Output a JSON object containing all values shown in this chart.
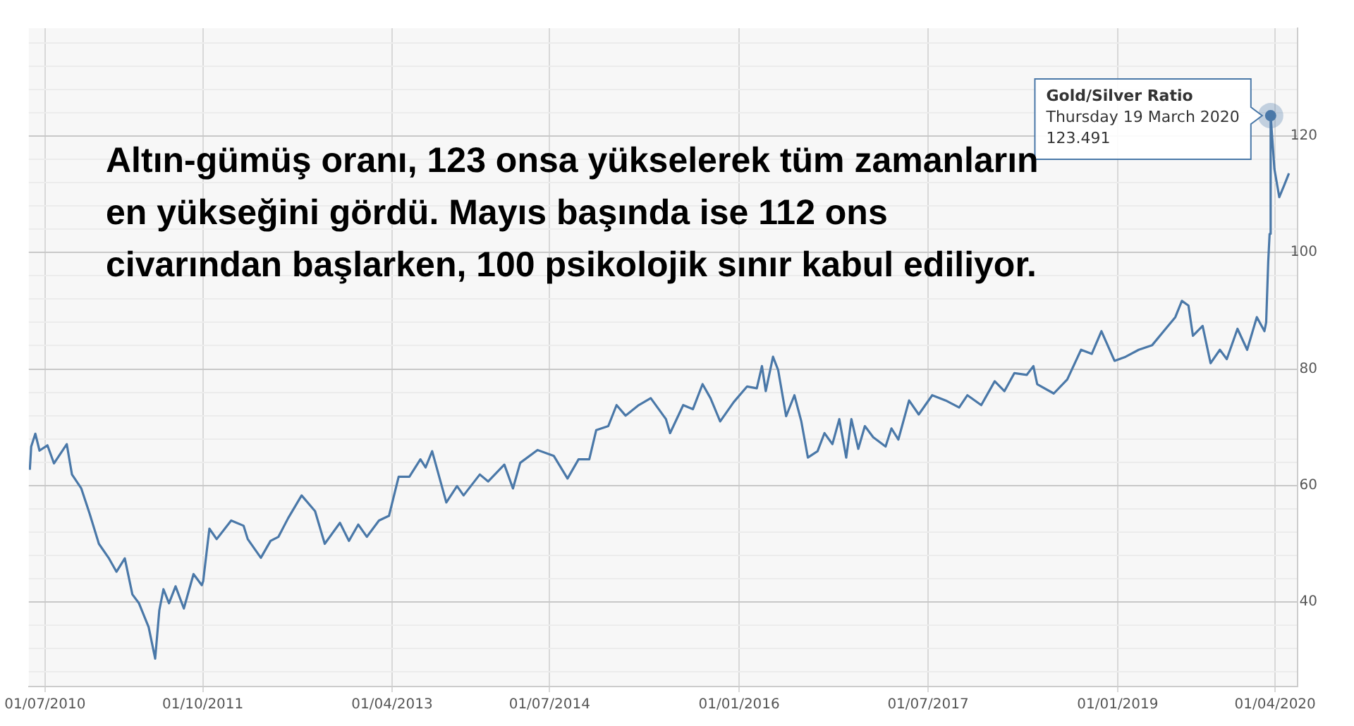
{
  "chart_data": {
    "type": "line",
    "title": "Altın-gümüş oranı, 123 onsa yükselerek tüm zamanların en yükseğini gördü. Mayıs başında ise 112 ons civarından başlarken, 100 psikolojik sınır kabul ediliyor.",
    "series": [
      {
        "color": "#4a78a8",
        "x": [
          "2010-05-18",
          "2010-05-22",
          "2010-06-03",
          "2010-06-15",
          "2010-07-08",
          "2010-07-27",
          "2010-09-02",
          "2010-09-17",
          "2010-10-14",
          "2010-11-07",
          "2010-12-04",
          "2011-01-01",
          "2011-01-24",
          "2011-02-17",
          "2011-03-11",
          "2011-03-30",
          "2011-04-27",
          "2011-05-16",
          "2011-05-28",
          "2011-06-09",
          "2011-06-25",
          "2011-07-14",
          "2011-08-07",
          "2011-09-04",
          "2011-09-28",
          "2011-10-02",
          "2011-10-20",
          "2011-11-10",
          "2011-12-22",
          "2012-01-27",
          "2012-02-08",
          "2012-03-17",
          "2012-04-14",
          "2012-05-07",
          "2012-06-04",
          "2012-07-13",
          "2012-08-21",
          "2012-09-18",
          "2012-11-01",
          "2012-11-27",
          "2012-12-24",
          "2013-01-18",
          "2013-02-22",
          "2013-03-23",
          "2013-04-20",
          "2013-05-21",
          "2013-06-22",
          "2013-07-07",
          "2013-07-26",
          "2013-09-05",
          "2013-10-06",
          "2013-10-25",
          "2013-12-11",
          "2014-01-04",
          "2014-02-20",
          "2014-03-17",
          "2014-04-07",
          "2014-05-27",
          "2014-07-13",
          "2014-08-22",
          "2014-09-23",
          "2014-10-24",
          "2014-11-13",
          "2014-12-18",
          "2015-01-11",
          "2015-02-06",
          "2015-03-16",
          "2015-04-20",
          "2015-06-03",
          "2015-06-15",
          "2015-07-23",
          "2015-08-20",
          "2015-09-17",
          "2015-10-10",
          "2015-11-07",
          "2015-12-16",
          "2016-01-24",
          "2016-02-21",
          "2016-03-07",
          "2016-03-18",
          "2016-04-08",
          "2016-04-23",
          "2016-05-16",
          "2016-06-09",
          "2016-06-29",
          "2016-07-18",
          "2016-08-15",
          "2016-09-04",
          "2016-09-27",
          "2016-10-17",
          "2016-11-06",
          "2016-11-21",
          "2016-12-11",
          "2016-12-30",
          "2017-01-23",
          "2017-02-28",
          "2017-03-17",
          "2017-04-06",
          "2017-05-07",
          "2017-06-04",
          "2017-07-13",
          "2017-08-21",
          "2017-09-29",
          "2017-10-23",
          "2017-12-02",
          "2018-01-10",
          "2018-02-07",
          "2018-03-08",
          "2018-04-13",
          "2018-05-02",
          "2018-05-13",
          "2018-06-30",
          "2018-08-08",
          "2018-09-17",
          "2018-10-18",
          "2018-11-15",
          "2018-12-23",
          "2019-01-24",
          "2019-03-03",
          "2019-04-11",
          "2019-05-20",
          "2019-06-17",
          "2019-07-06",
          "2019-07-25",
          "2019-08-07",
          "2019-09-04",
          "2019-09-27",
          "2019-10-24",
          "2019-11-13",
          "2019-12-14",
          "2020-01-11",
          "2020-02-08",
          "2020-03-01",
          "2020-03-06",
          "2020-03-12",
          "2020-03-16",
          "2020-03-19",
          "2020-03-30",
          "2020-04-13",
          "2020-04-27",
          "2020-05-11"
        ],
        "values": [
          62.7,
          66.7,
          68.9,
          66,
          66.9,
          63.8,
          67.1,
          61.9,
          59.5,
          55.2,
          50,
          47.6,
          45.2,
          47.5,
          41.3,
          39.8,
          35.7,
          30.3,
          38.6,
          42.2,
          39.8,
          42.7,
          38.9,
          44.8,
          42.9,
          43.6,
          52.6,
          50.8,
          54,
          53.1,
          50.8,
          47.6,
          50.5,
          51.2,
          54.4,
          58.3,
          55.6,
          50,
          53.6,
          50.5,
          53.3,
          51.2,
          54,
          54.8,
          61.5,
          61.5,
          64.5,
          63.1,
          65.9,
          57.1,
          59.9,
          58.3,
          61.9,
          60.7,
          63.6,
          59.5,
          63.9,
          66.1,
          65.1,
          61.2,
          64.5,
          64.5,
          69.5,
          70.2,
          73.8,
          72,
          73.8,
          75,
          71.4,
          69,
          73.8,
          73.1,
          77.4,
          75,
          71,
          74.3,
          77,
          76.7,
          80.5,
          76.2,
          82.1,
          79.8,
          71.9,
          75.5,
          71,
          64.8,
          65.9,
          69,
          67.1,
          71.4,
          64.8,
          71.4,
          66.3,
          70.2,
          68.3,
          66.7,
          69.8,
          67.9,
          74.6,
          72.2,
          75.5,
          74.6,
          73.4,
          75.5,
          73.8,
          77.9,
          76.2,
          79.3,
          79,
          80.5,
          77.4,
          75.8,
          78.2,
          83.3,
          82.6,
          86.5,
          81.4,
          82.1,
          83.3,
          84.1,
          86.9,
          88.9,
          91.7,
          90.9,
          85.7,
          87.4,
          81,
          83.3,
          81.7,
          86.9,
          83.3,
          88.9,
          86.5,
          88,
          98.4,
          103.2,
          123.491,
          114.3,
          109.5,
          111.5,
          113.6
        ]
      }
    ],
    "xlim": [
      "2010-05-15",
      "2020-06-05"
    ],
    "xticks": [
      {
        "value": "2010-07-01",
        "label": "01/07/2010"
      },
      {
        "value": "2011-10-01",
        "label": "01/10/2011"
      },
      {
        "value": "2013-04-01",
        "label": "01/04/2013"
      },
      {
        "value": "2014-07-01",
        "label": "01/07/2014"
      },
      {
        "value": "2016-01-01",
        "label": "01/01/2016"
      },
      {
        "value": "2017-07-01",
        "label": "01/07/2017"
      },
      {
        "value": "2019-01-01",
        "label": "01/01/2019"
      },
      {
        "value": "2020-04-01",
        "label": "01/04/2020"
      }
    ],
    "ylim": [
      25.5,
      138.5
    ],
    "yticks": [
      {
        "value": 28,
        "label": null
      },
      {
        "value": 32,
        "label": null
      },
      {
        "value": 36,
        "label": null
      },
      40,
      {
        "value": 44,
        "label": null
      },
      {
        "value": 48,
        "label": null
      },
      {
        "value": 52,
        "label": null
      },
      {
        "value": 56,
        "label": null
      },
      60,
      {
        "value": 64,
        "label": null
      },
      {
        "value": 68,
        "label": null
      },
      {
        "value": 72,
        "label": null
      },
      {
        "value": 76,
        "label": null
      },
      80,
      {
        "value": 84,
        "label": null
      },
      {
        "value": 88,
        "label": null
      },
      {
        "value": 92,
        "label": null
      },
      {
        "value": 96,
        "label": null
      },
      100,
      {
        "value": 104,
        "label": null
      },
      {
        "value": 108,
        "label": null
      },
      {
        "value": 112,
        "label": null
      },
      {
        "value": 116,
        "label": null
      },
      120,
      {
        "value": 124,
        "label": null
      },
      {
        "value": 128,
        "label": null
      },
      {
        "value": 132,
        "label": null
      },
      {
        "value": 136,
        "label": null
      }
    ],
    "grid": true,
    "legend": false,
    "marker": "none",
    "line_style": "solid",
    "annotations": [
      {
        "text": "Gold/Silver Ratio\nThursday 19 March 2020\n123.491",
        "x": "2020-03-19",
        "y": 123.491
      }
    ]
  }
}
